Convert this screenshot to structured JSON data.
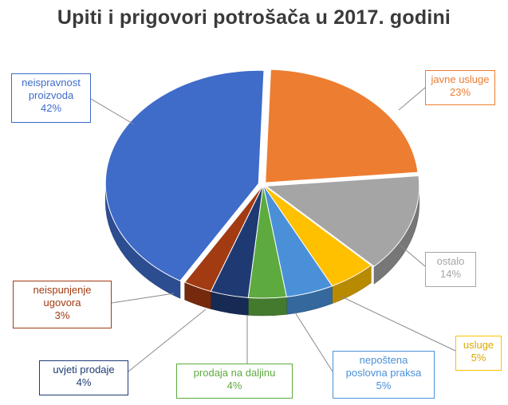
{
  "chart_data": {
    "type": "pie",
    "title": "Upiti i prigovori potrošača u 2017. godini",
    "slices": [
      {
        "label_lines": [
          "javne usluge"
        ],
        "pct_label": "23%",
        "value": 23,
        "color": "#ED7D31"
      },
      {
        "label_lines": [
          "ostalo"
        ],
        "pct_label": "14%",
        "value": 14,
        "color": "#A5A5A5"
      },
      {
        "label_lines": [
          "usluge"
        ],
        "pct_label": "5%",
        "value": 5,
        "color": "#FFC000"
      },
      {
        "label_lines": [
          "nepoštena",
          "poslovna praksa"
        ],
        "pct_label": "5%",
        "value": 5,
        "color": "#4A90D9"
      },
      {
        "label_lines": [
          "prodaja na daljinu"
        ],
        "pct_label": "4%",
        "value": 4,
        "color": "#5DAA3E"
      },
      {
        "label_lines": [
          "uvjeti prodaje"
        ],
        "pct_label": "4%",
        "value": 4,
        "color": "#1F3A73"
      },
      {
        "label_lines": [
          "neispunjenje",
          "ugovora"
        ],
        "pct_label": "3%",
        "value": 3,
        "color": "#A23A12"
      },
      {
        "label_lines": [
          "neispravnost",
          "proizvoda"
        ],
        "pct_label": "42%",
        "value": 42,
        "color": "#3F6BC9"
      }
    ]
  }
}
